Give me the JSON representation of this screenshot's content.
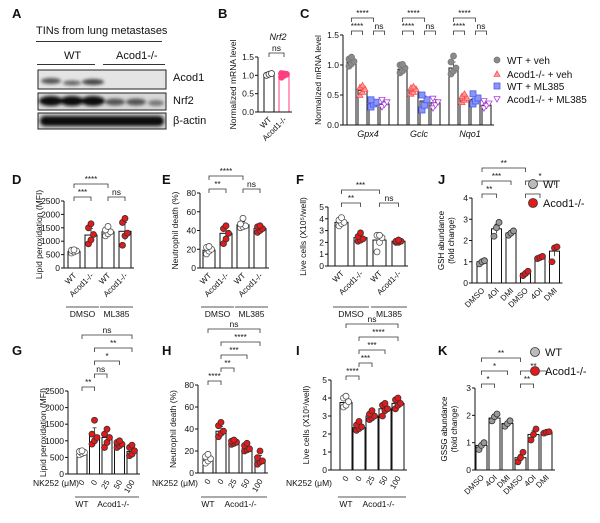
{
  "panels": {
    "A": {
      "label": "A",
      "title": "TINs from lung metastases",
      "groups": [
        "WT",
        "Acod1-/-"
      ],
      "rows": [
        "Acod1",
        "Nrf2",
        "β-actin"
      ]
    },
    "labels": [
      "B",
      "C",
      "D",
      "E",
      "F",
      "J",
      "G",
      "H",
      "I",
      "K"
    ]
  },
  "colors": {
    "wt": "#9a9a9a",
    "ko": "#e31a1c",
    "ko_pink": "#ff3e7f",
    "ml385_wt": "#4a5cf0",
    "ml385_ko": "#b040e0"
  },
  "chart_data": [
    {
      "panel": "B",
      "type": "bar",
      "title": "Nrf2",
      "ylabel": "Normalized mRNA level",
      "ylim": [
        0,
        1.5
      ],
      "yticks": [
        "0.0",
        "0.5",
        "1.0",
        "1.5"
      ],
      "ytick_values": [
        0,
        0.5,
        1,
        1.5
      ],
      "categories": [
        "WT",
        "Acod1-/-"
      ],
      "values": [
        1.02,
        1.02
      ],
      "points": [
        [
          1.0,
          1.03,
          1.05
        ],
        [
          0.95,
          1.0,
          1.03,
          1.05,
          1.04
        ]
      ],
      "sig": [
        {
          "from": 0,
          "to": 1,
          "label": "ns"
        }
      ]
    },
    {
      "panel": "C",
      "type": "bar",
      "ylabel": "Normalized mRNA level",
      "ylim": [
        0,
        1.5
      ],
      "yticks": [
        "0.0",
        "0.5",
        "1.0",
        "1.5"
      ],
      "ytick_values": [
        0,
        0.5,
        1,
        1.5
      ],
      "categories": [
        "Gpx4",
        "Gclc",
        "Nqo1"
      ],
      "series": [
        {
          "name": "WT + veh",
          "marker": "circle",
          "values": [
            1.05,
            0.93,
            0.95
          ],
          "points": [
            [
              0.98,
              1.02,
              1.06,
              1.1,
              1.13
            ],
            [
              0.87,
              0.9,
              0.95,
              1.0,
              1.01
            ],
            [
              0.85,
              0.9,
              0.95,
              1.05,
              1.15
            ]
          ]
        },
        {
          "name": "Acod1-/- + veh",
          "marker": "triangle",
          "values": [
            0.58,
            0.58,
            0.44
          ],
          "points": [
            [
              0.5,
              0.55,
              0.6,
              0.63,
              0.66
            ],
            [
              0.52,
              0.55,
              0.6,
              0.62,
              0.64
            ],
            [
              0.38,
              0.42,
              0.45,
              0.48,
              0.52
            ]
          ]
        },
        {
          "name": "WT + ML385",
          "marker": "square",
          "values": [
            0.37,
            0.4,
            0.43
          ],
          "points": [
            [
              0.3,
              0.35,
              0.38,
              0.42
            ],
            [
              0.25,
              0.33,
              0.42,
              0.5
            ],
            [
              0.35,
              0.4,
              0.45,
              0.52
            ]
          ]
        },
        {
          "name": "Acod1-/- + ML385",
          "marker": "triangle-down",
          "values": [
            0.35,
            0.37,
            0.33
          ],
          "points": [
            [
              0.3,
              0.34,
              0.38,
              0.42
            ],
            [
              0.28,
              0.33,
              0.38,
              0.44
            ],
            [
              0.28,
              0.32,
              0.36,
              0.4
            ]
          ]
        }
      ],
      "sig": [
        {
          "group": 0,
          "from": 0,
          "to": 1,
          "label": "****"
        },
        {
          "group": 0,
          "from": 0,
          "to": 2,
          "label": "****"
        },
        {
          "group": 0,
          "from": 2,
          "to": 3,
          "label": "ns"
        },
        {
          "group": 1,
          "from": 0,
          "to": 1,
          "label": "****"
        },
        {
          "group": 1,
          "from": 0,
          "to": 2,
          "label": "****"
        },
        {
          "group": 1,
          "from": 2,
          "to": 3,
          "label": "ns"
        },
        {
          "group": 2,
          "from": 0,
          "to": 1,
          "label": "****"
        },
        {
          "group": 2,
          "from": 0,
          "to": 2,
          "label": "****"
        },
        {
          "group": 2,
          "from": 2,
          "to": 3,
          "label": "ns"
        }
      ],
      "legend": "right"
    },
    {
      "panel": "D",
      "type": "bar",
      "ylabel": "Lipid peroxidation (MFI)",
      "ylim": [
        0,
        2500
      ],
      "yticks": [
        "0",
        "500",
        "1000",
        "1500",
        "2000",
        "2500"
      ],
      "ytick_values": [
        0,
        500,
        1000,
        1500,
        2000,
        2500
      ],
      "categories": [
        "WT",
        "Acod1-/-",
        "WT",
        "Acod1-/-"
      ],
      "groups": [
        {
          "label": "DMSO",
          "from": 0,
          "to": 1
        },
        {
          "label": "ML385",
          "from": 2,
          "to": 3
        }
      ],
      "values": [
        620,
        1230,
        1350,
        1370
      ],
      "point_colors": [
        "white",
        "ko",
        "white",
        "ko"
      ],
      "points": [
        [
          560,
          600,
          640,
          660,
          680
        ],
        [
          900,
          1050,
          1250,
          1500,
          1650
        ],
        [
          1200,
          1280,
          1350,
          1420,
          1550
        ],
        [
          850,
          1200,
          1300,
          1700,
          1850
        ]
      ],
      "sig": [
        {
          "from": 0,
          "to": 1,
          "label": "***"
        },
        {
          "from": 0,
          "to": 2,
          "label": "****"
        },
        {
          "from": 2,
          "to": 3,
          "label": "ns"
        }
      ]
    },
    {
      "panel": "E",
      "type": "bar",
      "ylabel": "Neutrophil death  (%)",
      "ylim": [
        0,
        80
      ],
      "yticks": [
        "0",
        "20",
        "40",
        "60",
        "80"
      ],
      "ytick_values": [
        0,
        20,
        40,
        60,
        80
      ],
      "categories": [
        "WT",
        "Acod1-/-",
        "WT",
        "Acod1-/-"
      ],
      "groups": [
        {
          "label": "DMSO",
          "from": 0,
          "to": 1
        },
        {
          "label": "ML385",
          "from": 2,
          "to": 3
        }
      ],
      "values": [
        19,
        37,
        46,
        42
      ],
      "point_colors": [
        "white",
        "ko",
        "white",
        "ko"
      ],
      "points": [
        [
          15,
          18,
          20,
          22,
          23
        ],
        [
          26,
          31,
          37,
          42,
          45
        ],
        [
          43,
          44,
          45,
          47,
          53
        ],
        [
          38,
          40,
          42,
          44,
          45
        ]
      ],
      "sig": [
        {
          "from": 0,
          "to": 1,
          "label": "**"
        },
        {
          "from": 0,
          "to": 2,
          "label": "****"
        },
        {
          "from": 2,
          "to": 3,
          "label": "ns"
        }
      ]
    },
    {
      "panel": "F",
      "type": "bar",
      "ylabel": "Live cells (X10⁵/well)",
      "ylim": [
        0,
        5
      ],
      "yticks": [
        "0",
        "1",
        "2",
        "3",
        "4",
        "5"
      ],
      "ytick_values": [
        0,
        1,
        2,
        3,
        4,
        5
      ],
      "categories": [
        "WT",
        "Acod1-/-",
        "WT",
        "Acod1-/-"
      ],
      "groups": [
        {
          "label": "DMSO",
          "from": 0,
          "to": 1
        },
        {
          "label": "ML385",
          "from": 2,
          "to": 3
        }
      ],
      "values": [
        3.7,
        2.4,
        2.2,
        2.1
      ],
      "point_colors": [
        "white",
        "ko",
        "white",
        "ko"
      ],
      "points": [
        [
          3.4,
          3.6,
          3.7,
          3.9,
          4.1
        ],
        [
          2.1,
          2.2,
          2.3,
          2.5,
          2.8
        ],
        [
          1.2,
          2.0,
          2.4,
          2.6,
          2.6
        ],
        [
          2.0,
          2.0,
          2.1,
          2.1,
          2.2
        ]
      ],
      "sig": [
        {
          "from": 0,
          "to": 1,
          "label": "**"
        },
        {
          "from": 0,
          "to": 2,
          "label": "***"
        },
        {
          "from": 2,
          "to": 3,
          "label": "ns"
        }
      ]
    },
    {
      "panel": "J",
      "type": "bar",
      "ylabel": "GSH abundance\n(fold change)",
      "ylim": [
        0,
        4
      ],
      "yticks": [
        "0",
        "1",
        "2",
        "3",
        "4"
      ],
      "ytick_values": [
        0,
        1,
        2,
        3,
        4
      ],
      "categories": [
        "DMSO",
        "4OI",
        "DMI",
        "DMSO",
        "4OI",
        "DMI"
      ],
      "values": [
        1.0,
        2.55,
        2.35,
        0.45,
        1.2,
        1.5
      ],
      "point_colors": [
        "wt",
        "wt",
        "wt",
        "ko",
        "ko",
        "ko"
      ],
      "points": [
        [
          0.9,
          1.0,
          1.05
        ],
        [
          2.2,
          2.6,
          2.85
        ],
        [
          2.25,
          2.35,
          2.45
        ],
        [
          0.35,
          0.45,
          0.55
        ],
        [
          1.15,
          1.2,
          1.25
        ],
        [
          1.0,
          1.65,
          1.7
        ]
      ],
      "sig": [
        {
          "from": 0,
          "to": 1,
          "label": "**"
        },
        {
          "from": 0,
          "to": 2,
          "label": "***"
        },
        {
          "from": 0,
          "to": 3,
          "label": "**"
        },
        {
          "from": 3,
          "to": 4,
          "label": "**"
        },
        {
          "from": 3,
          "to": 5,
          "label": "*"
        }
      ],
      "legend_entries": [
        "WT",
        "Acod1-/-"
      ],
      "legend": "top-right"
    },
    {
      "panel": "G",
      "type": "bar",
      "ylabel": "Lipid peroxidation (MFI)",
      "ylim": [
        0,
        2500
      ],
      "yticks": [
        "0",
        "500",
        "1000",
        "1500",
        "2000",
        "2500"
      ],
      "ytick_values": [
        0,
        500,
        1000,
        1500,
        2000,
        2500
      ],
      "xlabel": "NK252 (μM)",
      "categories": [
        "0",
        "0",
        "25",
        "50",
        "100"
      ],
      "groups": [
        {
          "label": "WT",
          "from": 0,
          "to": 0
        },
        {
          "label": "Acod1-/-",
          "from": 1,
          "to": 4
        }
      ],
      "values": [
        640,
        1150,
        1100,
        900,
        680
      ],
      "point_colors": [
        "white",
        "ko",
        "ko",
        "ko",
        "ko"
      ],
      "points": [
        [
          580,
          620,
          650,
          680,
          700
        ],
        [
          900,
          1000,
          1100,
          1200,
          1620
        ],
        [
          800,
          950,
          1100,
          1200,
          1350
        ],
        [
          800,
          850,
          900,
          950,
          1000
        ],
        [
          550,
          600,
          700,
          800,
          870
        ]
      ],
      "sig": [
        {
          "from": 0,
          "to": 1,
          "label": "**"
        },
        {
          "from": 1,
          "to": 2,
          "label": "ns"
        },
        {
          "from": 1,
          "to": 3,
          "label": "*"
        },
        {
          "from": 1,
          "to": 4,
          "label": "**"
        },
        {
          "from": 0,
          "to": 4,
          "label": "ns"
        }
      ]
    },
    {
      "panel": "H",
      "type": "bar",
      "ylabel": "Neutrophil death  (%)",
      "ylim": [
        0,
        80
      ],
      "yticks": [
        "0",
        "20",
        "40",
        "60",
        "80"
      ],
      "ytick_values": [
        0,
        20,
        40,
        60,
        80
      ],
      "xlabel": "NK252 (μM)",
      "categories": [
        "0",
        "0",
        "25",
        "50",
        "100"
      ],
      "groups": [
        {
          "label": "WT",
          "from": 0,
          "to": 0
        },
        {
          "label": "Acod1-/-",
          "from": 1,
          "to": 4
        }
      ],
      "values": [
        13,
        38,
        28,
        22,
        12
      ],
      "point_colors": [
        "white",
        "ko",
        "ko",
        "ko",
        "ko"
      ],
      "points": [
        [
          9,
          11,
          13,
          15,
          17
        ],
        [
          33,
          36,
          38,
          43,
          46
        ],
        [
          26,
          27,
          28,
          29,
          30
        ],
        [
          20,
          21,
          22,
          25,
          27
        ],
        [
          8,
          10,
          11,
          14,
          20
        ]
      ],
      "sig": [
        {
          "from": 0,
          "to": 1,
          "label": "****"
        },
        {
          "from": 1,
          "to": 2,
          "label": "**"
        },
        {
          "from": 1,
          "to": 3,
          "label": "***"
        },
        {
          "from": 1,
          "to": 4,
          "label": "****"
        },
        {
          "from": 0,
          "to": 4,
          "label": "ns"
        }
      ]
    },
    {
      "panel": "I",
      "type": "bar",
      "ylabel": "Live cells (X10⁵/well)",
      "ylim": [
        0,
        5
      ],
      "yticks": [
        "0",
        "1",
        "2",
        "3",
        "4",
        "5"
      ],
      "ytick_values": [
        0,
        1,
        2,
        3,
        4,
        5
      ],
      "xlabel": "NK252 (μM)",
      "categories": [
        "0",
        "0",
        "25",
        "50",
        "100"
      ],
      "groups": [
        {
          "label": "WT",
          "from": 0,
          "to": 0
        },
        {
          "label": "Acod1-/-",
          "from": 1,
          "to": 4
        }
      ],
      "values": [
        3.75,
        2.35,
        3.0,
        3.4,
        3.7
      ],
      "point_colors": [
        "white",
        "ko",
        "ko",
        "ko",
        "ko"
      ],
      "points": [
        [
          3.5,
          3.6,
          3.8,
          4.0,
          4.1
        ],
        [
          2.2,
          2.3,
          2.4,
          2.5,
          2.7
        ],
        [
          2.8,
          2.9,
          3.0,
          3.1,
          3.3
        ],
        [
          3.0,
          3.3,
          3.4,
          3.6,
          3.7
        ],
        [
          3.4,
          3.6,
          3.7,
          3.9,
          4.0
        ]
      ],
      "sig": [
        {
          "from": 0,
          "to": 1,
          "label": "****"
        },
        {
          "from": 1,
          "to": 2,
          "label": "***"
        },
        {
          "from": 1,
          "to": 3,
          "label": "***"
        },
        {
          "from": 1,
          "to": 4,
          "label": "****"
        },
        {
          "from": 0,
          "to": 4,
          "label": "ns"
        }
      ]
    },
    {
      "panel": "K",
      "type": "bar",
      "ylabel": "GSSG abundance\n(fold change)",
      "ylim": [
        0,
        3
      ],
      "yticks": [
        "0",
        "1",
        "2",
        "3"
      ],
      "ytick_values": [
        0,
        1,
        2,
        3
      ],
      "categories": [
        "DMSO",
        "4OI",
        "DMI",
        "DMSO",
        "4OI",
        "DMI"
      ],
      "values": [
        0.9,
        1.9,
        1.7,
        0.45,
        1.3,
        1.38
      ],
      "point_colors": [
        "wt",
        "wt",
        "wt",
        "ko",
        "ko",
        "ko"
      ],
      "points": [
        [
          0.75,
          0.9,
          1.0
        ],
        [
          1.8,
          1.95,
          2.05
        ],
        [
          1.6,
          1.7,
          1.8
        ],
        [
          0.3,
          0.45,
          0.65
        ],
        [
          1.1,
          1.3,
          1.5
        ],
        [
          1.35,
          1.38,
          1.4
        ]
      ],
      "sig": [
        {
          "from": 0,
          "to": 1,
          "label": "*"
        },
        {
          "from": 0,
          "to": 2,
          "label": "*"
        },
        {
          "from": 0,
          "to": 3,
          "label": "**"
        },
        {
          "from": 3,
          "to": 4,
          "label": "**"
        },
        {
          "from": 3,
          "to": 5,
          "label": "**"
        }
      ],
      "legend_entries": [
        "WT",
        "Acod1-/-"
      ],
      "legend": "top-right"
    }
  ]
}
